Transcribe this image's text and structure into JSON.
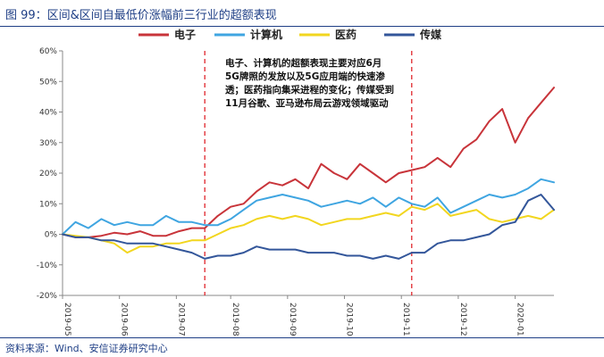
{
  "figure": {
    "title": "图 99：区间&区间自最低价涨幅前三行业的超额表现",
    "source": "资料来源：Wind、安信证券研究中心"
  },
  "chart_data": {
    "type": "line",
    "title": "",
    "xlabel": "",
    "ylabel": "",
    "ylim": [
      -20,
      60
    ],
    "yticks": [
      -20,
      -10,
      0,
      10,
      20,
      30,
      40,
      50,
      60
    ],
    "ytick_labels": [
      "-20%",
      "-10%",
      "0%",
      "10%",
      "20%",
      "30%",
      "40%",
      "50%",
      "60%"
    ],
    "xlim": [
      0,
      190
    ],
    "xticks": [
      0,
      22,
      44,
      65,
      87,
      109,
      131,
      153,
      175
    ],
    "xtick_labels": [
      "2019-05",
      "2019-06",
      "2019-07",
      "2019-08",
      "2019-09",
      "2019-10",
      "2019-11",
      "2019-12",
      "2020-01"
    ],
    "grid": false,
    "legend_position": "top",
    "vlines": [
      55,
      135
    ],
    "annotation": "电子、计算机的超额表现主要对应6月5G牌照的发放以及5G应用端的快速渗透；医药指向集采进程的变化；传媒受到11月谷歌、亚马逊布局云游戏领域驱动",
    "x": [
      0,
      5,
      10,
      15,
      20,
      25,
      30,
      35,
      40,
      45,
      50,
      55,
      60,
      65,
      70,
      75,
      80,
      85,
      90,
      95,
      100,
      105,
      110,
      115,
      120,
      125,
      130,
      135,
      140,
      145,
      150,
      155,
      160,
      165,
      170,
      175,
      180,
      185,
      190
    ],
    "series": [
      {
        "name": "电子",
        "color": "#c8343a",
        "values": [
          0,
          -1,
          -1,
          -0.5,
          0.5,
          0,
          1,
          -0.5,
          -0.5,
          1,
          2,
          2,
          6,
          9,
          10,
          14,
          17,
          16,
          18,
          15,
          23,
          20,
          18,
          23,
          20,
          17,
          20,
          21,
          22,
          25,
          22,
          28,
          31,
          37,
          41,
          30,
          38,
          43,
          48
        ]
      },
      {
        "name": "计算机",
        "color": "#3fa5e1",
        "values": [
          0,
          4,
          2,
          5,
          3,
          4,
          3,
          3,
          6,
          4,
          4,
          3,
          3,
          5,
          8,
          11,
          12,
          13,
          12,
          11,
          9,
          10,
          11,
          10,
          12,
          9,
          12,
          10,
          9,
          12,
          7,
          9,
          11,
          13,
          12,
          13,
          15,
          18,
          17
        ]
      },
      {
        "name": "医药",
        "color": "#f2d61f",
        "values": [
          0,
          -0.5,
          -1,
          -2,
          -3,
          -6,
          -4,
          -4,
          -3,
          -3,
          -2,
          -2,
          0,
          2,
          3,
          5,
          6,
          5,
          6,
          5,
          3,
          4,
          5,
          5,
          6,
          7,
          6,
          9,
          8,
          10,
          6,
          7,
          8,
          5,
          4,
          5,
          6,
          5,
          8
        ]
      },
      {
        "name": "传媒",
        "color": "#33569a",
        "values": [
          0,
          -1,
          -1,
          -2,
          -2,
          -3,
          -3,
          -3,
          -4,
          -5,
          -6,
          -8,
          -7,
          -7,
          -6,
          -4,
          -5,
          -5,
          -5,
          -6,
          -6,
          -6,
          -7,
          -7,
          -8,
          -7,
          -8,
          -6,
          -6,
          -3,
          -2,
          -2,
          -1,
          0,
          3,
          4,
          11,
          13,
          8
        ]
      }
    ]
  }
}
